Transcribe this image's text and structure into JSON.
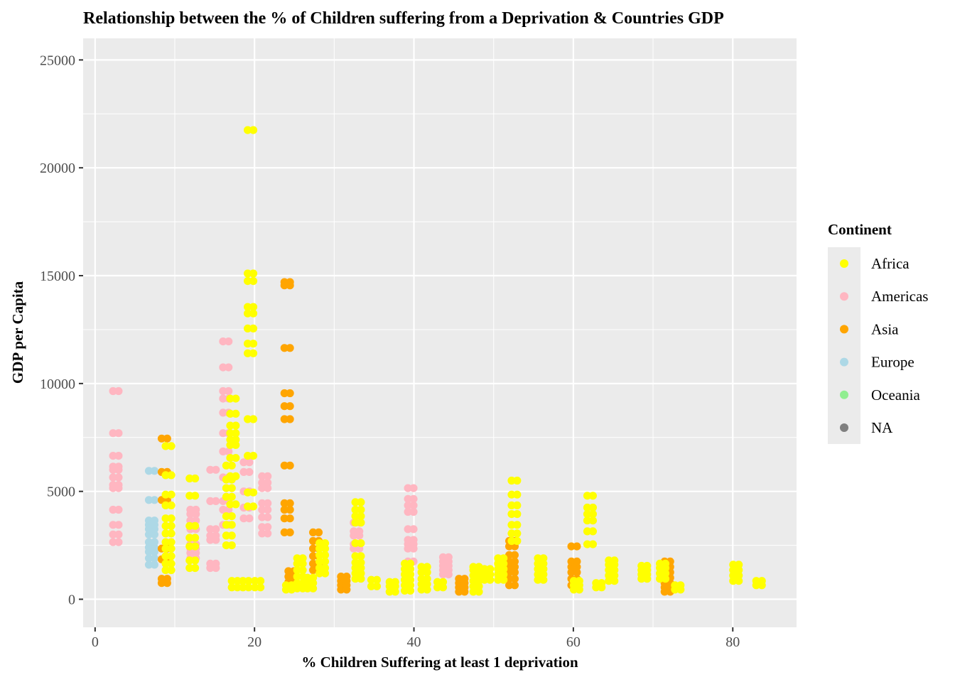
{
  "chart_data": {
    "type": "scatter",
    "title": "Relationship between the % of Children suffering from a Deprivation & Countries GDP",
    "xlabel": "% Children Suffering at least 1 deprivation",
    "ylabel": "GDP per Capita",
    "xlim": [
      -1.5,
      88
    ],
    "ylim": [
      -1300,
      26000
    ],
    "x_ticks": [
      0,
      20,
      40,
      60,
      80
    ],
    "y_ticks": [
      0,
      5000,
      10000,
      15000,
      20000,
      25000
    ],
    "x_tick_labels": [
      "0",
      "20",
      "40",
      "60",
      "80"
    ],
    "y_tick_labels": [
      "0",
      "5000",
      "10000",
      "15000",
      "20000",
      "25000"
    ],
    "grid": true,
    "legend": {
      "title": "Continent",
      "placement": "right",
      "entries": [
        {
          "name": "Africa",
          "color": "#ffff00"
        },
        {
          "name": "Americas",
          "color": "#ffb6c1"
        },
        {
          "name": "Asia",
          "color": "#ffa500"
        },
        {
          "name": "Europe",
          "color": "#add8e6"
        },
        {
          "name": "Oceania",
          "color": "#90ee90"
        },
        {
          "name": "NA",
          "color": "#7f7f7f"
        }
      ]
    },
    "series": [
      {
        "name": "Americas",
        "color": "#ffb6c1",
        "groups": [
          {
            "x": 2.6,
            "y": [
              2650,
              3000,
              3450,
              4150,
              5150,
              5300,
              5650,
              6000,
              6150,
              6650,
              7700,
              9650
            ]
          },
          {
            "x": 12.3,
            "y": [
              1900,
              2150,
              2350,
              2550,
              3250,
              3650,
              3950,
              4150
            ]
          },
          {
            "x": 14.8,
            "y": [
              1450,
              1650,
              2750,
              2950,
              3250,
              4550,
              6000
            ]
          },
          {
            "x": 16.4,
            "y": [
              3450,
              4150,
              4550,
              5650,
              6850,
              7700,
              8650,
              9300,
              9650,
              10750,
              11950
            ]
          },
          {
            "x": 19,
            "y": [
              3750,
              4250,
              5000,
              5900,
              6350
            ]
          },
          {
            "x": 21.3,
            "y": [
              3050,
              3350,
              3800,
              4150,
              4450,
              5150,
              5400,
              5700
            ]
          },
          {
            "x": 32.8,
            "y": [
              2350,
              2550,
              2950,
              3150,
              3550
            ]
          },
          {
            "x": 39.6,
            "y": [
              1750,
              2350,
              2550,
              2750,
              3250,
              4050,
              4350,
              4650,
              5150
            ]
          },
          {
            "x": 44,
            "y": [
              1150,
              1350,
              1550,
              1750,
              1950
            ]
          }
        ]
      },
      {
        "name": "Europe",
        "color": "#add8e6",
        "groups": [
          {
            "x": 7.1,
            "y": [
              1600,
              1900,
              2200,
              2400,
              2650,
              3000,
              3250,
              3450,
              3650,
              4600,
              5950
            ]
          }
        ]
      },
      {
        "name": "Asia",
        "color": "#ffa500",
        "groups": [
          {
            "x": 8.7,
            "y": [
              750,
              950,
              1850,
              2350,
              4600,
              5900,
              7450
            ]
          },
          {
            "x": 24.1,
            "y": [
              3100,
              3750,
              4150,
              4450,
              6200,
              8350,
              8950,
              9550,
              11650,
              14550,
              14700
            ]
          },
          {
            "x": 24.6,
            "y": [
              550,
              800,
              1050,
              1300
            ]
          },
          {
            "x": 27.7,
            "y": [
              1350,
              1650,
              2000,
              2350,
              2700,
              3100
            ]
          },
          {
            "x": 31.2,
            "y": [
              450,
              650,
              850,
              1050
            ]
          },
          {
            "x": 46,
            "y": [
              350,
              550,
              750,
              950
            ]
          },
          {
            "x": 52.3,
            "y": [
              650,
              950,
              1250,
              1500,
              1750,
              2050,
              2450,
              2700
            ]
          },
          {
            "x": 60.1,
            "y": [
              650,
              950,
              1250,
              1500,
              1750,
              2450
            ]
          },
          {
            "x": 71.8,
            "y": [
              350,
              550,
              750,
              1000,
              1250,
              1500,
              1750
            ]
          }
        ]
      },
      {
        "name": "Africa",
        "color": "#ffff00",
        "groups": [
          {
            "x": 9.2,
            "y": [
              1350,
              1650,
              2000,
              2350,
              2650,
              3050,
              3400,
              3750,
              4350,
              4850,
              5750,
              7100
            ]
          },
          {
            "x": 12.2,
            "y": [
              1450,
              1800,
              2450,
              2850,
              3400,
              4800,
              5600
            ]
          },
          {
            "x": 16.8,
            "y": [
              2500,
              2950,
              3450,
              3850,
              4750,
              5150,
              5550,
              6200
            ]
          },
          {
            "x": 17.3,
            "y": [
              4400,
              5700,
              6550,
              7150,
              7400,
              7700,
              8050,
              8600,
              9300
            ]
          },
          {
            "x": 17.5,
            "y": [
              550,
              850
            ]
          },
          {
            "x": 18.9,
            "y": [
              550,
              850
            ]
          },
          {
            "x": 19.5,
            "y": [
              4300,
              4950,
              6650,
              8350,
              11400,
              11850,
              12550,
              13250,
              13550,
              14750,
              15100,
              21750
            ]
          },
          {
            "x": 20.4,
            "y": [
              550,
              850
            ]
          },
          {
            "x": 24.3,
            "y": [
              450,
              650
            ]
          },
          {
            "x": 25.7,
            "y": [
              500,
              750,
              1050,
              1350,
              1650,
              1900
            ]
          },
          {
            "x": 27,
            "y": [
              500,
              750,
              1000
            ]
          },
          {
            "x": 28.5,
            "y": [
              1200,
              1450,
              1750,
              2050,
              2350,
              2600
            ]
          },
          {
            "x": 33,
            "y": [
              950,
              1200,
              1450,
              1700,
              2000,
              2600,
              3550,
              3850,
              4150,
              4500
            ]
          },
          {
            "x": 35,
            "y": [
              600,
              900
            ]
          },
          {
            "x": 37.3,
            "y": [
              350,
              600,
              800
            ]
          },
          {
            "x": 39.2,
            "y": [
              400,
              650,
              900,
              1150,
              1400,
              1650
            ]
          },
          {
            "x": 41.3,
            "y": [
              450,
              700,
              950,
              1250,
              1500
            ]
          },
          {
            "x": 43.3,
            "y": [
              550,
              800
            ]
          },
          {
            "x": 47.8,
            "y": [
              350,
              600,
              850,
              1100,
              1350,
              1500
            ]
          },
          {
            "x": 49.2,
            "y": [
              900,
              1150,
              1400
            ]
          },
          {
            "x": 50.9,
            "y": [
              900,
              1150,
              1400,
              1650,
              1900
            ]
          },
          {
            "x": 52.6,
            "y": [
              2700,
              3050,
              3450,
              3950,
              4350,
              4850,
              5500
            ]
          },
          {
            "x": 55.9,
            "y": [
              900,
              1150,
              1400,
              1650,
              1900
            ]
          },
          {
            "x": 60.4,
            "y": [
              450,
              650,
              850
            ]
          },
          {
            "x": 62.1,
            "y": [
              2550,
              3150,
              3650,
              3950,
              4250,
              4800
            ]
          },
          {
            "x": 63.2,
            "y": [
              550,
              750
            ]
          },
          {
            "x": 64.8,
            "y": [
              850,
              1100,
              1350,
              1600,
              1800
            ]
          },
          {
            "x": 68.9,
            "y": [
              950,
              1150,
              1350,
              1550
            ]
          },
          {
            "x": 71.2,
            "y": [
              950,
              1200,
              1450,
              1650
            ]
          },
          {
            "x": 73.1,
            "y": [
              450,
              650
            ]
          },
          {
            "x": 80.4,
            "y": [
              850,
              1100,
              1350,
              1600
            ]
          },
          {
            "x": 83.3,
            "y": [
              650,
              850
            ]
          }
        ]
      }
    ]
  }
}
